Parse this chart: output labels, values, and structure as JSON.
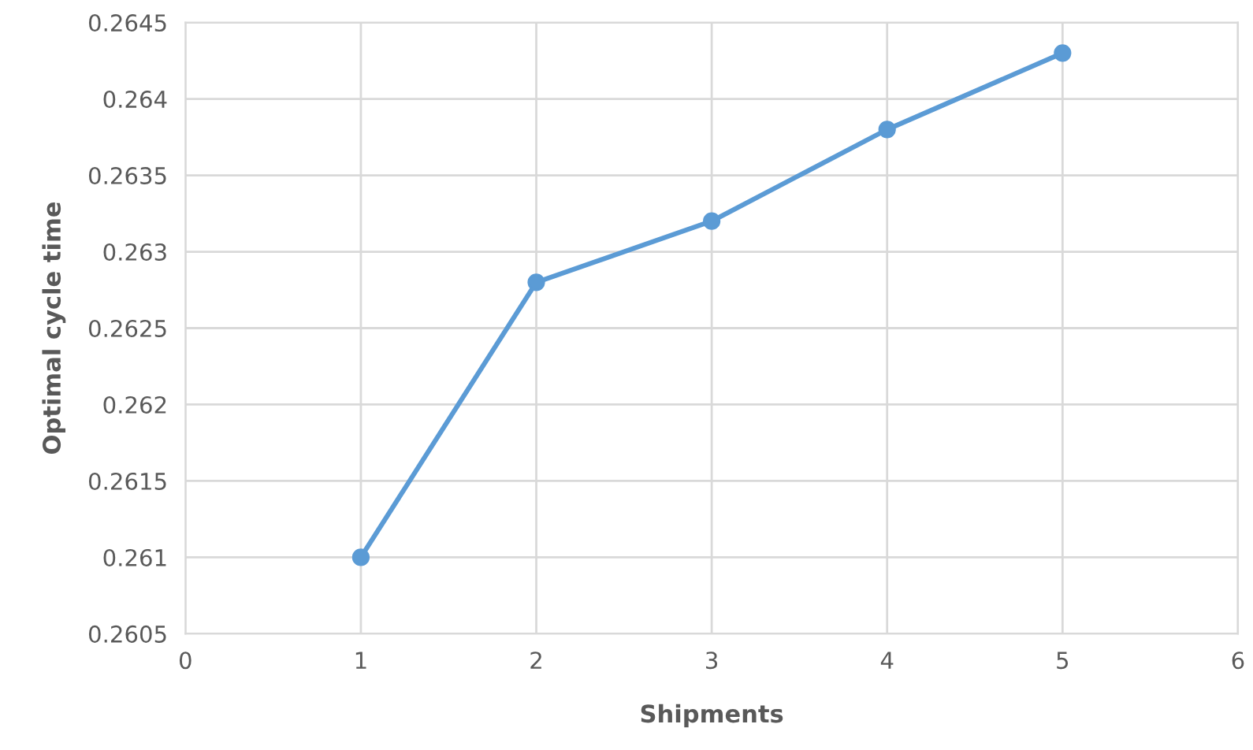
{
  "chart_data": {
    "type": "line",
    "xlabel": "Shipments",
    "ylabel": "Optimal cycle time",
    "x": [
      1,
      2,
      3,
      4,
      5
    ],
    "series": [
      {
        "color": "#5b9bd5",
        "values": [
          0.261,
          0.2628,
          0.2632,
          0.2638,
          0.2643
        ]
      }
    ],
    "xlim": [
      0,
      6
    ],
    "xticks": [
      0,
      1,
      2,
      3,
      4,
      5,
      6
    ],
    "ylim": [
      0.2605,
      0.2645
    ],
    "yticks": [
      0.2605,
      0.261,
      0.2615,
      0.262,
      0.2625,
      0.263,
      0.2635,
      0.264,
      0.2645
    ],
    "grid": true,
    "marker": "circle",
    "line_style": "solid"
  }
}
